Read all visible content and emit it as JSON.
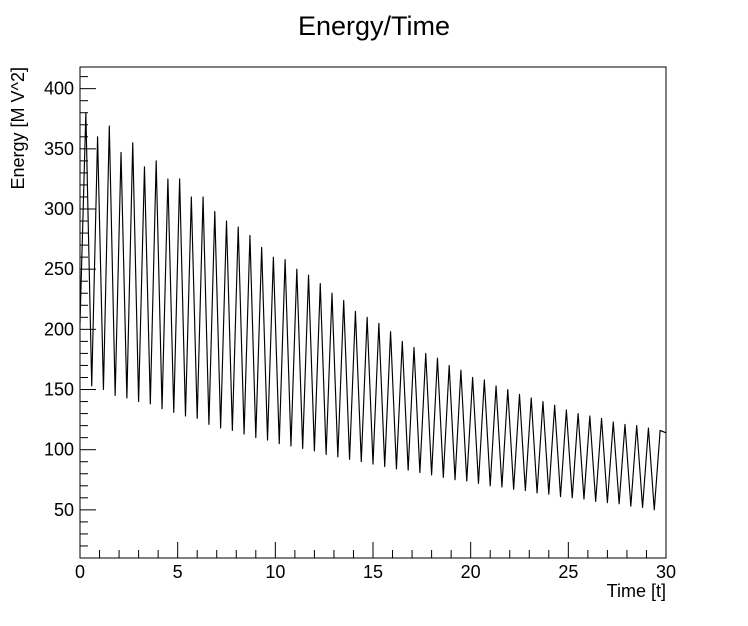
{
  "chart_data": {
    "type": "line",
    "title": "Energy/Time",
    "xlabel": "Time [t]",
    "ylabel": "Energy [M V^2]",
    "xlim": [
      0,
      30
    ],
    "ylim": [
      10,
      418
    ],
    "x_ticks": [
      0,
      5,
      10,
      15,
      20,
      25,
      30
    ],
    "x_tick_labels": [
      "0",
      "5",
      "10",
      "15",
      "20",
      "25",
      "30"
    ],
    "y_ticks": [
      50,
      100,
      150,
      200,
      250,
      300,
      350,
      400
    ],
    "y_tick_labels": [
      "50",
      "100",
      "150",
      "200",
      "250",
      "300",
      "350",
      "400"
    ],
    "grid": false,
    "legend": "none",
    "line_color": "#000000",
    "series": [
      {
        "x": [
          0.0,
          0.3,
          0.6,
          0.9,
          1.2,
          1.5,
          1.8,
          2.1,
          2.4,
          2.7,
          3.0,
          3.3,
          3.6,
          3.9,
          4.2,
          4.5,
          4.8,
          5.1,
          5.4,
          5.7,
          6.0,
          6.3,
          6.6,
          6.9,
          7.2,
          7.5,
          7.8,
          8.1,
          8.4,
          8.7,
          9.0,
          9.3,
          9.6,
          9.9,
          10.2,
          10.5,
          10.8,
          11.1,
          11.4,
          11.7,
          12.0,
          12.3,
          12.6,
          12.9,
          13.2,
          13.5,
          13.8,
          14.1,
          14.4,
          14.7,
          15.0,
          15.3,
          15.6,
          15.9,
          16.2,
          16.5,
          16.8,
          17.1,
          17.4,
          17.7,
          18.0,
          18.3,
          18.6,
          18.9,
          19.2,
          19.5,
          19.8,
          20.1,
          20.4,
          20.7,
          21.0,
          21.3,
          21.6,
          21.9,
          22.2,
          22.5,
          22.8,
          23.1,
          23.4,
          23.7,
          24.0,
          24.3,
          24.6,
          24.9,
          25.2,
          25.5,
          25.8,
          26.1,
          26.4,
          26.7,
          27.0,
          27.3,
          27.6,
          27.9,
          28.2,
          28.5,
          28.8,
          29.1,
          29.4,
          29.7,
          30.0
        ],
        "values": [
          205,
          380,
          153,
          360,
          150,
          369,
          145,
          347,
          143,
          355,
          140,
          335,
          138,
          340,
          134,
          325,
          131,
          325,
          128,
          310,
          126,
          310,
          121,
          298,
          118,
          290,
          116,
          285,
          113,
          278,
          110,
          268,
          108,
          260,
          105,
          258,
          103,
          250,
          101,
          245,
          99,
          238,
          96,
          230,
          94,
          224,
          92,
          215,
          90,
          210,
          88,
          205,
          86,
          198,
          84,
          190,
          83,
          185,
          81,
          180,
          79,
          176,
          77,
          170,
          75,
          166,
          74,
          160,
          72,
          158,
          70,
          153,
          69,
          150,
          67,
          146,
          66,
          143,
          64,
          140,
          63,
          137,
          61,
          133,
          60,
          130,
          59,
          128,
          57,
          126,
          56,
          123,
          55,
          121,
          53,
          120,
          52,
          118,
          50,
          116,
          114
        ]
      }
    ]
  }
}
